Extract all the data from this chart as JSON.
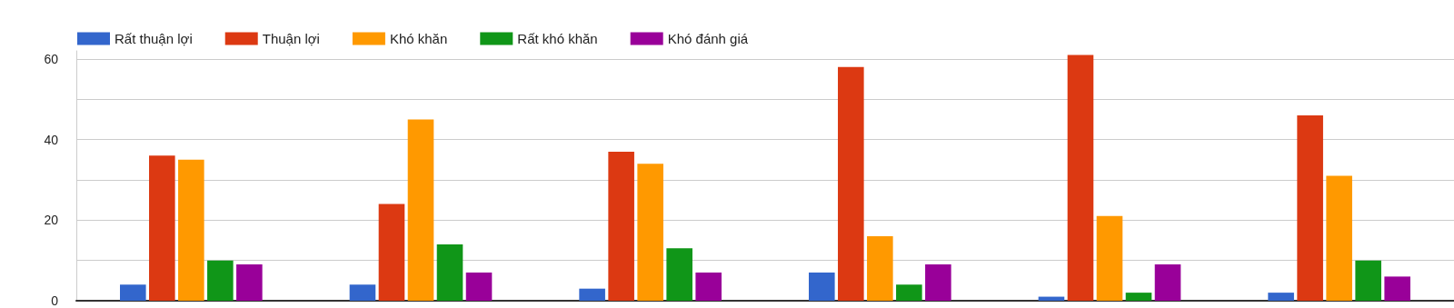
{
  "chart_data": {
    "type": "bar",
    "categories": [
      null,
      null,
      null,
      null,
      null,
      null
    ],
    "series": [
      {
        "name": "Rất thuận lợi",
        "color": "#3366cc",
        "values": [
          4,
          4,
          3,
          7,
          1,
          2
        ]
      },
      {
        "name": "Thuận lợi",
        "color": "#dc3912",
        "values": [
          36,
          24,
          37,
          58,
          61,
          46
        ]
      },
      {
        "name": "Khó khăn",
        "color": "#ff9900",
        "values": [
          35,
          45,
          34,
          16,
          21,
          31
        ]
      },
      {
        "name": "Rất khó khăn",
        "color": "#109618",
        "values": [
          10,
          14,
          13,
          4,
          2,
          10
        ]
      },
      {
        "name": "Khó đánh giá",
        "color": "#990099",
        "values": [
          9,
          7,
          7,
          9,
          9,
          6
        ]
      }
    ],
    "ylim": [
      0,
      62
    ],
    "yticks": [
      0,
      {
        "value": 10,
        "label": null
      },
      20,
      {
        "value": 30,
        "label": null
      },
      40,
      {
        "value": 50,
        "label": null
      },
      60
    ],
    "grid": "y",
    "legend": "top left"
  }
}
